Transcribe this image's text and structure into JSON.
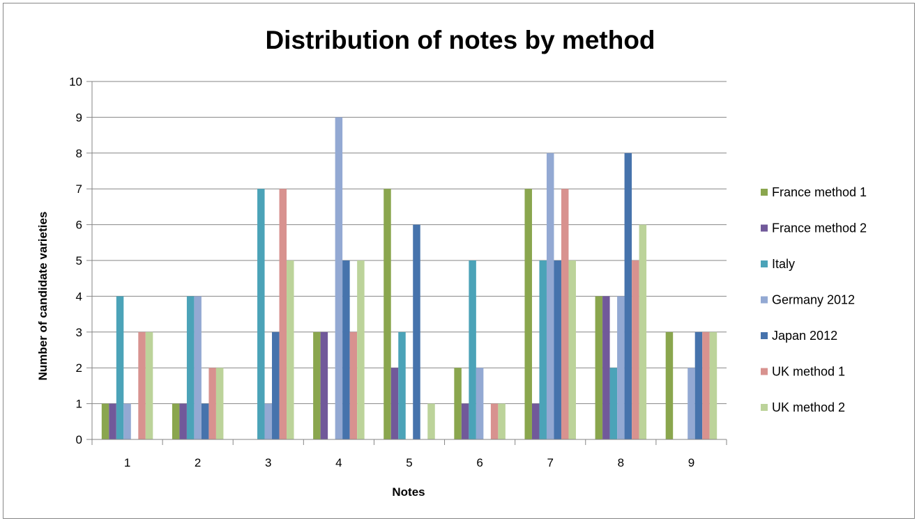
{
  "chart_data": {
    "type": "bar",
    "title": "Distribution of notes by method",
    "xlabel": "Notes",
    "ylabel": "Number of candidate varieties",
    "categories": [
      "1",
      "2",
      "3",
      "4",
      "5",
      "6",
      "7",
      "8",
      "9"
    ],
    "y_ticks": [
      "0",
      "1",
      "2",
      "3",
      "4",
      "5",
      "6",
      "7",
      "8",
      "9",
      "10"
    ],
    "ylim": [
      0,
      10
    ],
    "grid": "horizontal",
    "legend_position": "right",
    "series": [
      {
        "name": "France method 1",
        "color": "#8AA64E",
        "values": [
          1,
          1,
          0,
          3,
          7,
          2,
          7,
          4,
          3
        ]
      },
      {
        "name": "France method 2",
        "color": "#71599A",
        "values": [
          1,
          1,
          0,
          3,
          2,
          1,
          1,
          4,
          0
        ]
      },
      {
        "name": "Italy",
        "color": "#4BA3B8",
        "values": [
          4,
          4,
          7,
          0,
          3,
          5,
          5,
          2,
          0
        ]
      },
      {
        "name": "Germany 2012",
        "color": "#93A9D3",
        "values": [
          1,
          4,
          1,
          9,
          0,
          2,
          8,
          4,
          2
        ]
      },
      {
        "name": "Japan 2012",
        "color": "#4673AC",
        "values": [
          0,
          1,
          3,
          5,
          6,
          0,
          5,
          8,
          3
        ]
      },
      {
        "name": "UK method 1",
        "color": "#D8928F",
        "values": [
          3,
          2,
          7,
          3,
          0,
          1,
          7,
          5,
          3
        ]
      },
      {
        "name": "UK method  2",
        "color": "#BCD39A",
        "values": [
          3,
          2,
          5,
          5,
          1,
          1,
          5,
          6,
          3
        ]
      }
    ]
  }
}
